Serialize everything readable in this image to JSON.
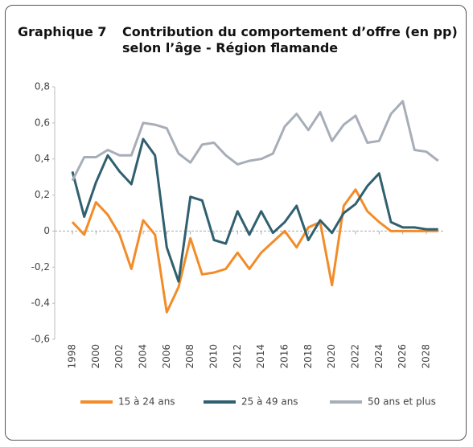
{
  "chart_data": {
    "type": "line",
    "label": "Graphique 7",
    "title": "Contribution du comportement d’offre (en pp) selon l’âge - Région flamande",
    "x": [
      1998,
      1999,
      2000,
      2001,
      2002,
      2003,
      2004,
      2005,
      2006,
      2007,
      2008,
      2009,
      2010,
      2011,
      2012,
      2013,
      2014,
      2015,
      2016,
      2017,
      2018,
      2019,
      2020,
      2021,
      2022,
      2023,
      2024,
      2025,
      2026,
      2027,
      2028,
      2029
    ],
    "series": [
      {
        "name": "15 à 24 ans",
        "color": "#f28c28",
        "values": [
          0.05,
          -0.02,
          0.16,
          0.09,
          -0.02,
          -0.21,
          0.06,
          -0.02,
          -0.45,
          -0.31,
          -0.04,
          -0.24,
          -0.23,
          -0.21,
          -0.12,
          -0.21,
          -0.12,
          -0.06,
          0.0,
          -0.09,
          0.02,
          0.05,
          -0.3,
          0.14,
          0.23,
          0.11,
          0.05,
          0.0,
          0.0,
          0.0,
          0.0,
          0.0
        ]
      },
      {
        "name": "25 à 49 ans",
        "color": "#30606f",
        "values": [
          0.33,
          0.08,
          0.27,
          0.42,
          0.33,
          0.26,
          0.51,
          0.42,
          -0.09,
          -0.28,
          0.19,
          0.17,
          -0.05,
          -0.07,
          0.11,
          -0.02,
          0.11,
          -0.01,
          0.05,
          0.14,
          -0.05,
          0.06,
          -0.01,
          0.1,
          0.15,
          0.25,
          0.32,
          0.05,
          0.02,
          0.02,
          0.01,
          0.01
        ]
      },
      {
        "name": "50 ans et plus",
        "color": "#a7aeb8",
        "values": [
          0.28,
          0.41,
          0.41,
          0.45,
          0.42,
          0.42,
          0.6,
          0.59,
          0.57,
          0.43,
          0.38,
          0.48,
          0.49,
          0.42,
          0.37,
          0.39,
          0.4,
          0.43,
          0.58,
          0.65,
          0.56,
          0.66,
          0.5,
          0.59,
          0.64,
          0.49,
          0.5,
          0.65,
          0.72,
          0.45,
          0.44,
          0.39
        ]
      }
    ],
    "xlim": [
      1996.5,
      2029.5
    ],
    "xticks": [
      1998,
      2000,
      2002,
      2004,
      2006,
      2008,
      2010,
      2012,
      2014,
      2016,
      2018,
      2020,
      2022,
      2024,
      2026,
      2028
    ],
    "ylim": [
      -0.6,
      0.8
    ],
    "yticks": [
      {
        "value": -0.6,
        "label": "-0,6"
      },
      {
        "value": -0.4,
        "label": "-0,4"
      },
      {
        "value": -0.2,
        "label": "-0,2"
      },
      0,
      {
        "value": 0.2,
        "label": "0,2"
      },
      {
        "value": 0.4,
        "label": "0,4"
      },
      {
        "value": 0.6,
        "label": "0,6"
      },
      {
        "value": 0.8,
        "label": "0,8"
      }
    ],
    "grid": false
  }
}
